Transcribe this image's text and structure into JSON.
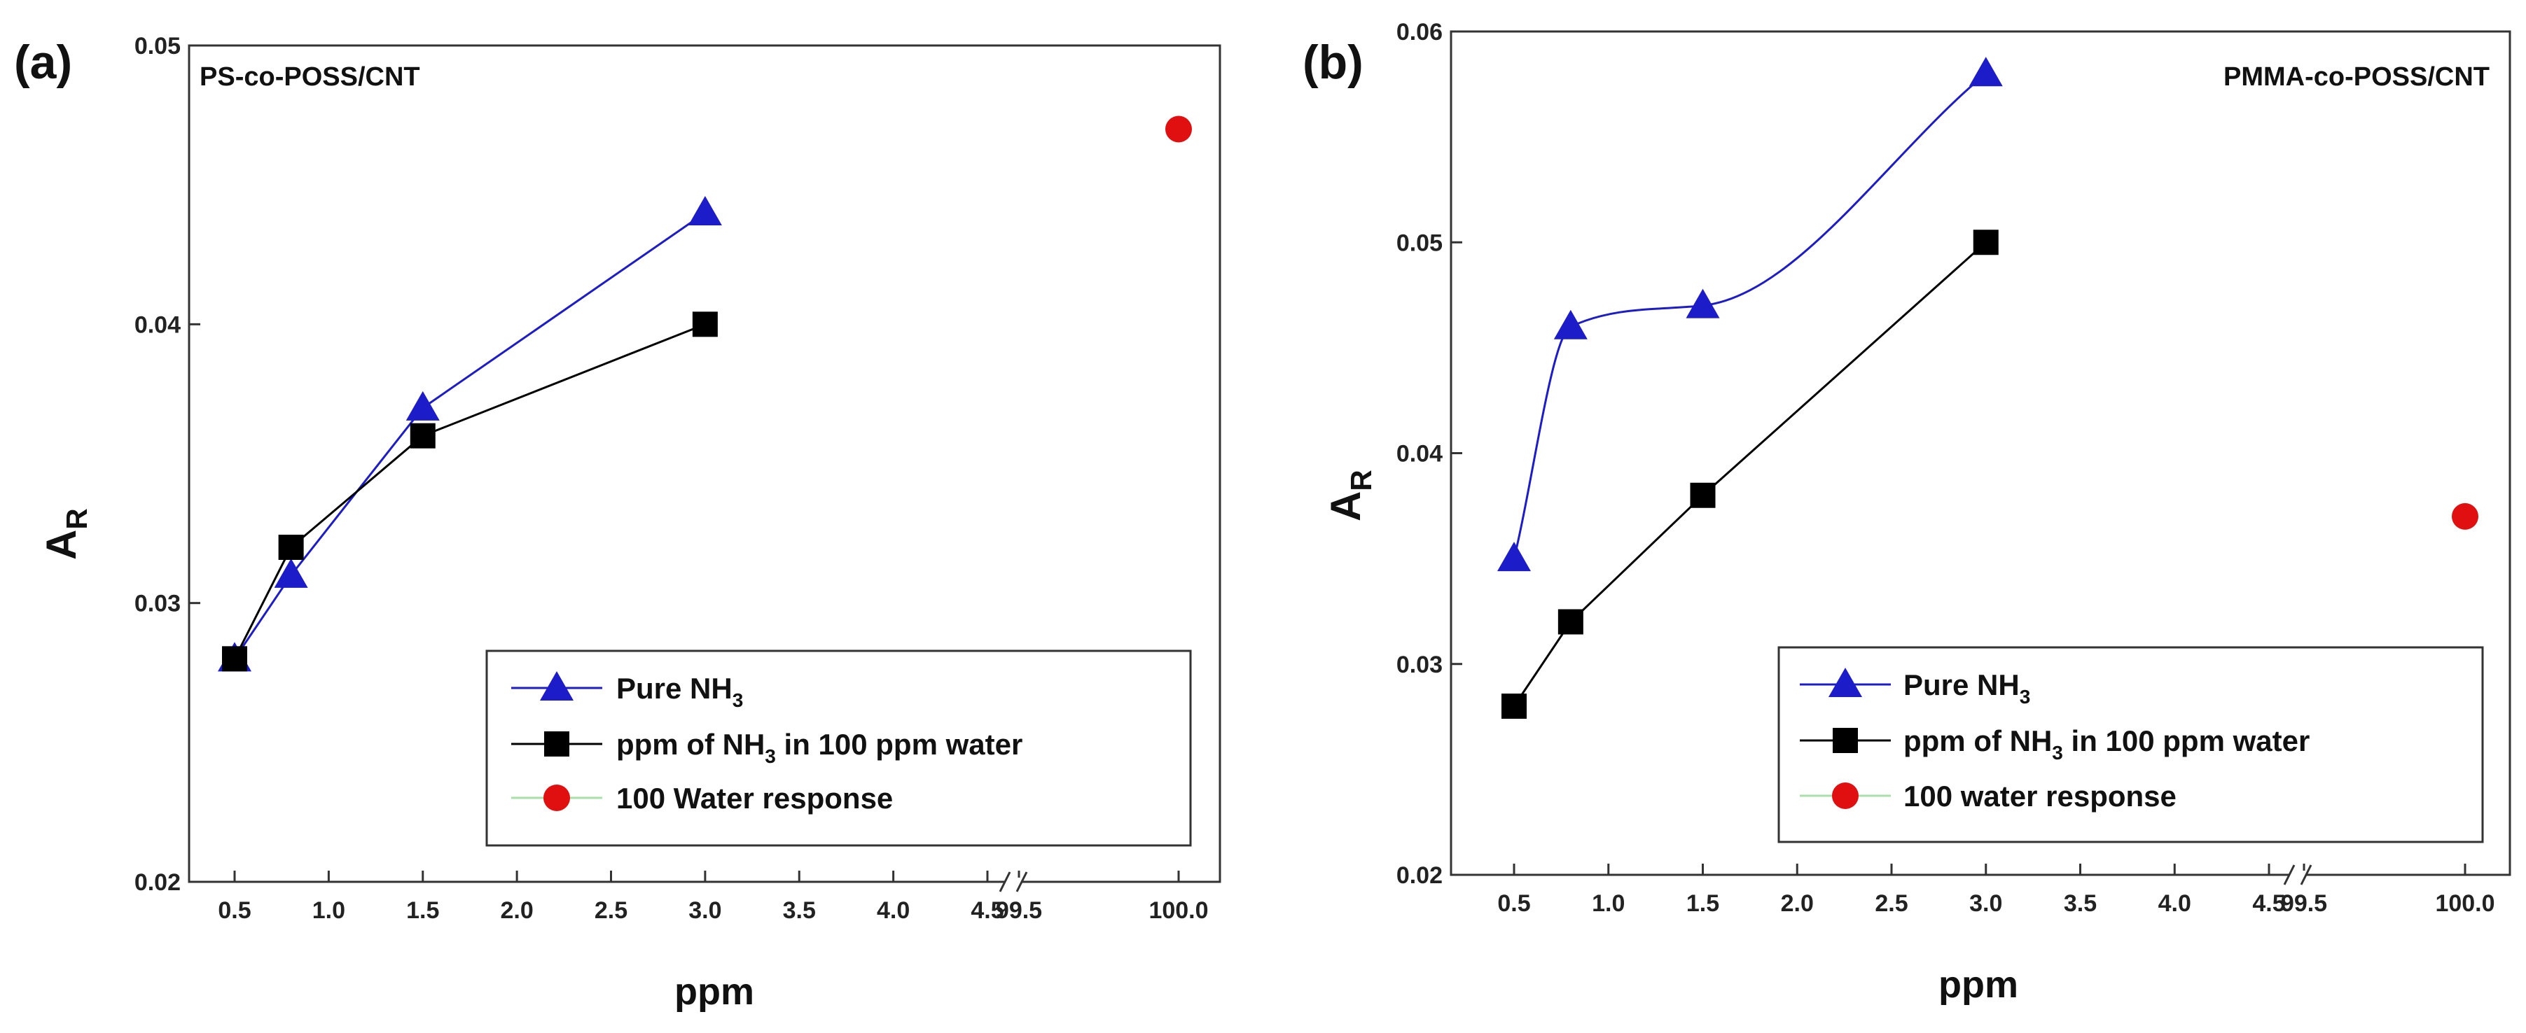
{
  "chart_data": [
    {
      "panel_label": "(a)",
      "type": "line",
      "title": "PS-co-POSS/CNT",
      "xlabel": "ppm",
      "ylabel_main": "A",
      "ylabel_sub": "R",
      "ylim": [
        0.02,
        0.05
      ],
      "y_ticks": [
        0.02,
        0.03,
        0.04,
        0.05
      ],
      "y_tick_labels": [
        "0.02",
        "0.03",
        "0.04",
        "0.05"
      ],
      "x_ticks": [
        0.5,
        1.0,
        1.5,
        2.0,
        2.5,
        3.0,
        3.5,
        4.0,
        4.5,
        99.5,
        100.0
      ],
      "x_tick_labels": [
        "0.5",
        "1.0",
        "1.5",
        "2.0",
        "2.5",
        "3.0",
        "3.5",
        "4.0",
        "4.5",
        "99.5",
        "100.0"
      ],
      "axis_break": "4.5 // 99.5",
      "series": [
        {
          "name": "Pure NH",
          "name_sub": "3",
          "name_rest": "",
          "marker": "triangle",
          "color": "#1c1cc8",
          "line": "straight",
          "x": [
            0.5,
            0.8,
            1.5,
            3.0
          ],
          "y": [
            0.028,
            0.031,
            0.037,
            0.044
          ]
        },
        {
          "name": "ppm of NH",
          "name_sub": "3",
          "name_rest": " in 100 ppm water",
          "marker": "square",
          "color": "#000000",
          "line": "straight",
          "x": [
            0.5,
            0.8,
            1.5,
            3.0
          ],
          "y": [
            0.028,
            0.032,
            0.036,
            0.04
          ]
        },
        {
          "name": "100 Water response",
          "name_sub": "",
          "name_rest": "",
          "marker": "circle",
          "color": "#e01010",
          "line": "none",
          "legend_line_color": "#a8e0a8",
          "x": [
            100.0
          ],
          "y": [
            0.047
          ]
        }
      ]
    },
    {
      "panel_label": "(b)",
      "type": "line",
      "title": "PMMA-co-POSS/CNT",
      "xlabel": "ppm",
      "ylabel_main": "A",
      "ylabel_sub": "R",
      "ylim": [
        0.02,
        0.06
      ],
      "y_ticks": [
        0.02,
        0.03,
        0.04,
        0.05,
        0.06
      ],
      "y_tick_labels": [
        "0.02",
        "0.03",
        "0.04",
        "0.05",
        "0.06"
      ],
      "x_ticks": [
        0.5,
        1.0,
        1.5,
        2.0,
        2.5,
        3.0,
        3.5,
        4.0,
        4.5,
        99.5,
        100.0
      ],
      "x_tick_labels": [
        "0.5",
        "1.0",
        "1.5",
        "2.0",
        "2.5",
        "3.0",
        "3.5",
        "4.0",
        "4.5",
        "99.5",
        "100.0"
      ],
      "axis_break": "4.5 // 99.5",
      "series": [
        {
          "name": "Pure NH",
          "name_sub": "3",
          "name_rest": "",
          "marker": "triangle",
          "color": "#1c1cc8",
          "line": "smooth",
          "x": [
            0.5,
            0.8,
            1.5,
            3.0
          ],
          "y": [
            0.035,
            0.046,
            0.047,
            0.058
          ]
        },
        {
          "name": "ppm of NH",
          "name_sub": "3",
          "name_rest": " in 100 ppm water",
          "marker": "square",
          "color": "#000000",
          "line": "straight",
          "x": [
            0.5,
            0.8,
            1.5,
            3.0
          ],
          "y": [
            0.028,
            0.032,
            0.038,
            0.05
          ]
        },
        {
          "name": "100 water response",
          "name_sub": "",
          "name_rest": "",
          "marker": "circle",
          "color": "#e01010",
          "line": "none",
          "legend_line_color": "#a8e0a8",
          "x": [
            100.0
          ],
          "y": [
            0.037
          ]
        }
      ]
    }
  ]
}
